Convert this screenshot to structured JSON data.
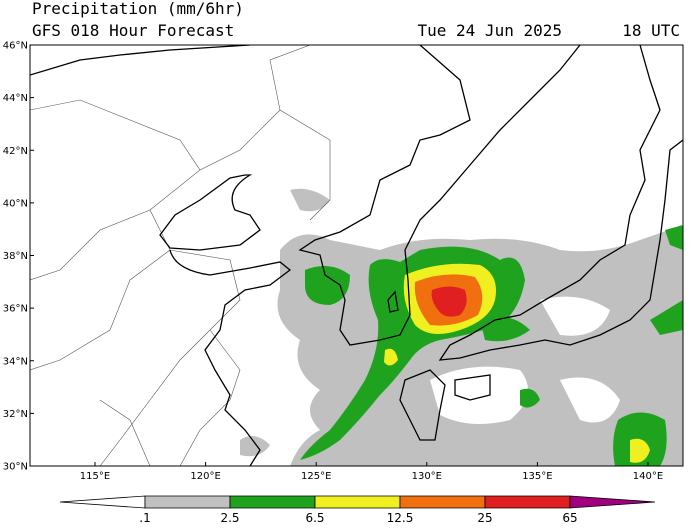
{
  "header": {
    "title": "Precipitation (mm/6hr)",
    "subtitle": "GFS 018 Hour Forecast",
    "date": "Tue 24 Jun 2025",
    "time": "18 UTC"
  },
  "map": {
    "lat_labels": [
      "46°N",
      "44°N",
      "42°N",
      "40°N",
      "38°N",
      "36°N",
      "34°N",
      "32°N",
      "30°N"
    ],
    "lon_labels": [
      "115°E",
      "120°E",
      "125°E",
      "130°E",
      "135°E",
      "140°E"
    ]
  },
  "colorbar": {
    "labels": [
      ".1",
      "2.5",
      "6.5",
      "12.5",
      "25",
      "65"
    ],
    "colors": [
      "#ffffff",
      "#c0c0c0",
      "#1fa31f",
      "#f0f020",
      "#f07010",
      "#e02020",
      "#a00080"
    ]
  }
}
